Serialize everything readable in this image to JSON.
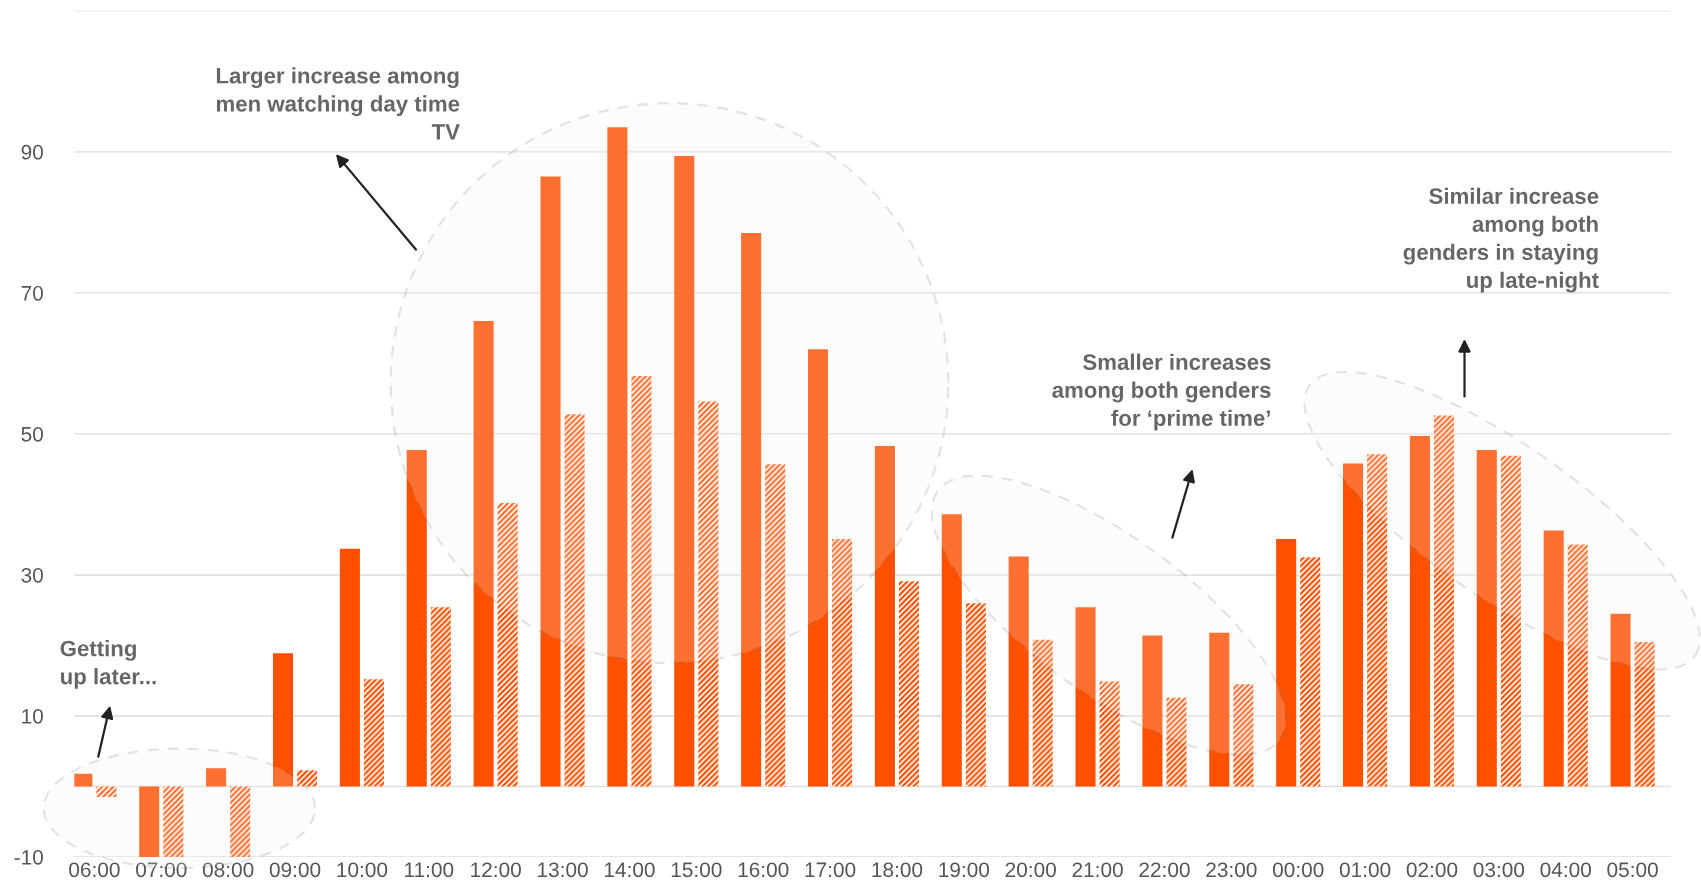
{
  "chart_data": {
    "type": "bar",
    "categories": [
      "06:00",
      "07:00",
      "08:00",
      "09:00",
      "10:00",
      "11:00",
      "12:00",
      "13:00",
      "14:00",
      "15:00",
      "16:00",
      "17:00",
      "18:00",
      "19:00",
      "20:00",
      "21:00",
      "22:00",
      "23:00",
      "00:00",
      "01:00",
      "02:00",
      "03:00",
      "04:00",
      "05:00"
    ],
    "series": [
      {
        "color": "#ff5000",
        "values": [
          1.8,
          -10,
          2.6,
          18.9,
          33.7,
          47.7,
          66,
          86.5,
          93.5,
          89.4,
          78.5,
          62,
          48.3,
          38.6,
          32.6,
          25.4,
          21.4,
          21.8,
          35.1,
          45.8,
          49.7,
          47.7,
          36.3,
          24.5
        ]
      },
      {
        "color": "#ff5000",
        "values": [
          -1.5,
          -10,
          -10,
          2.3,
          15.2,
          25.4,
          40.2,
          52.8,
          58.2,
          54.6,
          45.7,
          35.1,
          29.1,
          26,
          20.8,
          14.9,
          12.6,
          14.5,
          32.5,
          47.1,
          52.6,
          46.9,
          34.3,
          20.5
        ]
      }
    ],
    "ylim": [
      -10,
      110
    ],
    "yticks": [
      -10,
      10,
      30,
      50,
      70,
      90,
      {
        "value": 110,
        "label": null
      }
    ],
    "grid": "y",
    "legend": false,
    "ref_lines": [
      {
        "axis": "y",
        "value": 0,
        "color": "#e0e0e0"
      }
    ],
    "annotations": [
      "Getting\nup later...",
      "Larger increase among\nmen watching day time\nTV",
      "Smaller increases\namong both genders\nfor ‘prime time’",
      "Similar increase\namong both\ngenders in staying\nup late-night"
    ]
  }
}
